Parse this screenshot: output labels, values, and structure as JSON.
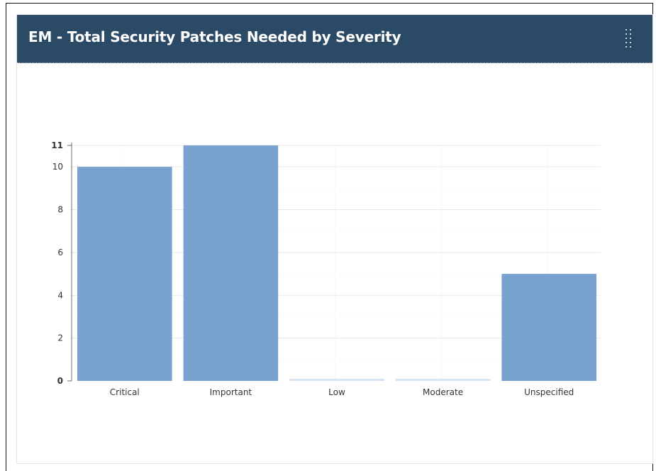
{
  "widget": {
    "title": "EM - Total Security Patches Needed by Severity",
    "drag_handle_icon": "drag-handle-icon"
  },
  "chart_data": {
    "type": "bar",
    "categories": [
      "Critical",
      "Important",
      "Low",
      "Moderate",
      "Unspecified"
    ],
    "values": [
      10,
      11,
      0,
      0,
      5
    ],
    "title": "EM - Total Security Patches Needed by Severity",
    "xlabel": "",
    "ylabel": "",
    "ylim": [
      0,
      11
    ],
    "yticks": [
      0,
      2,
      4,
      6,
      8,
      10,
      11
    ],
    "grid": true,
    "legend": "none",
    "bar_color": "#7aa2d0"
  }
}
